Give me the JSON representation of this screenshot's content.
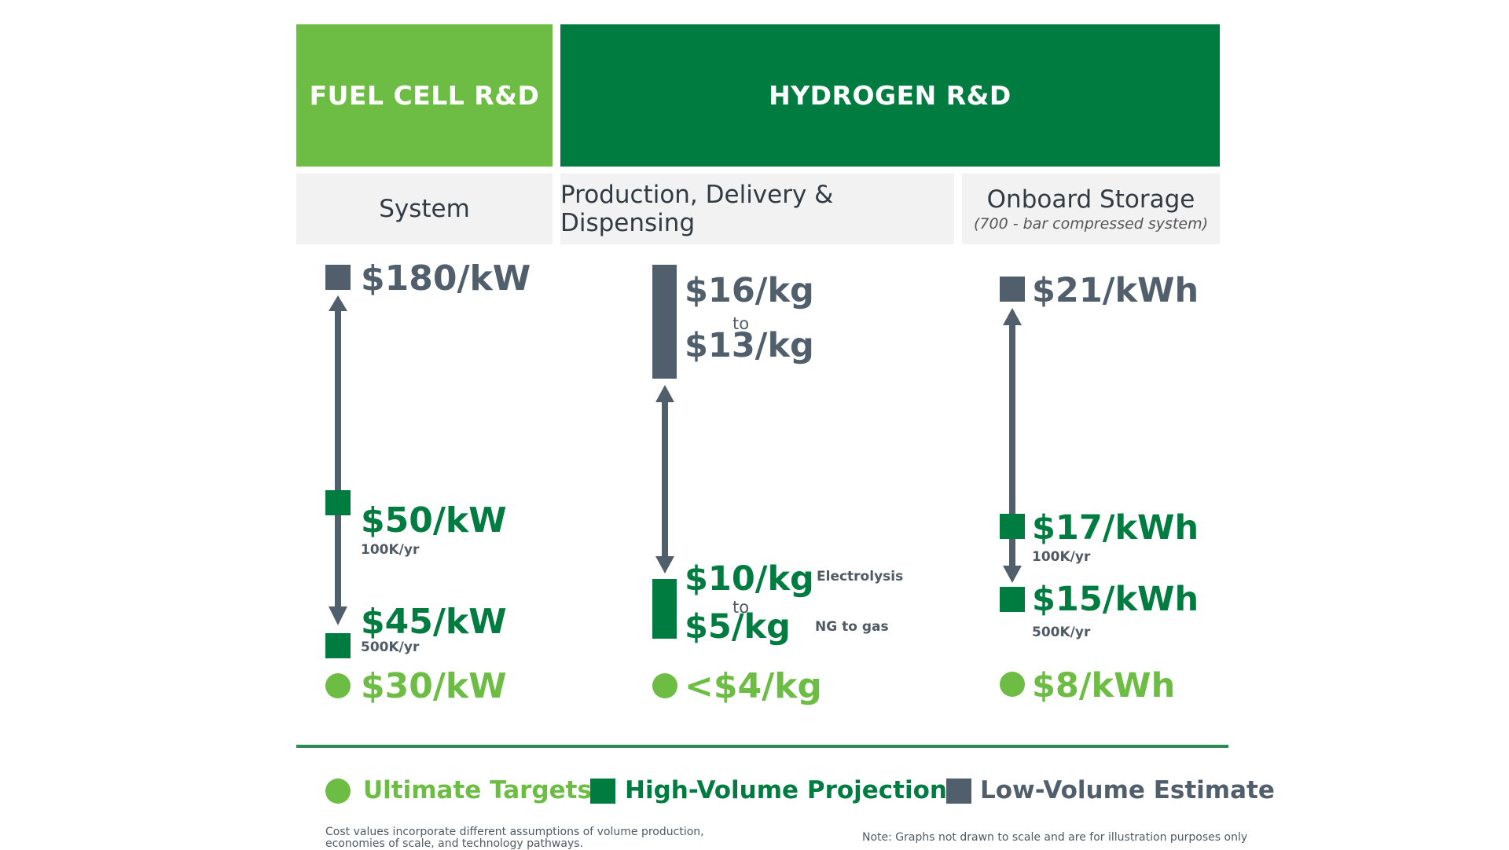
{
  "colors": {
    "light_green": "#6dbd45",
    "dark_green": "#007c41",
    "gray": "#515f6c",
    "header_bg": "#f2f2f2"
  },
  "headers": {
    "fuel_cell": "FUEL CELL R&D",
    "hydrogen": "HYDROGEN R&D"
  },
  "columns": {
    "system": {
      "title": "System",
      "low_volume": "$180/kW",
      "high_volume_1": {
        "value": "$50/kW",
        "volume": "100K/yr"
      },
      "high_volume_2": {
        "value": "$45/kW",
        "volume": "500K/yr"
      },
      "ultimate": "$30/kW"
    },
    "production": {
      "title": "Production, Delivery & Dispensing",
      "low_volume_top": "$16/kg",
      "low_volume_to": "to",
      "low_volume_bottom": "$13/kg",
      "high_volume_top": "$10/kg",
      "high_volume_to": "to",
      "high_volume_bottom": "$5/kg",
      "high_volume_top_note": "Electrolysis",
      "high_volume_bottom_note": "NG to gas",
      "ultimate": "<$4/kg"
    },
    "storage": {
      "title": "Onboard Storage",
      "subtitle": "(700 - bar compressed system)",
      "low_volume": "$21/kWh",
      "high_volume_1": {
        "value": "$17/kWh",
        "volume": "100K/yr"
      },
      "high_volume_2": {
        "value": "$15/kWh",
        "volume": "500K/yr"
      },
      "ultimate": "$8/kWh"
    }
  },
  "legend": {
    "ultimate": {
      "label": "Ultimate Targets",
      "shape": "circle-icon"
    },
    "high_volume": {
      "label": "High-Volume Projection",
      "shape": "square-icon"
    },
    "low_volume": {
      "label": "Low-Volume Estimate",
      "shape": "square-icon"
    }
  },
  "footnotes": {
    "left_line1": "Cost values incorporate different assumptions of volume production,",
    "left_line2": "economies of scale, and technology pathways.",
    "right": "Note: Graphs not drawn to scale and are for illustration purposes only"
  }
}
